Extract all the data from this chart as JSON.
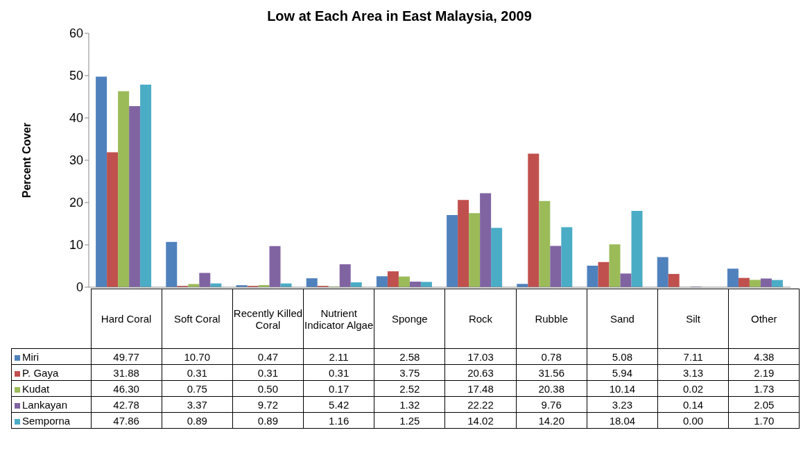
{
  "chart_data": {
    "type": "bar",
    "title": "Low at Each Area in East Malaysia, 2009",
    "ylabel": "Percent Cover",
    "categories": [
      "Hard Coral",
      "Soft Coral",
      "Recently Killed Coral",
      "Nutrient Indicator Algae",
      "Sponge",
      "Rock",
      "Rubble",
      "Sand",
      "Silt",
      "Other"
    ],
    "series": [
      {
        "name": "Miri",
        "color": "#4f81bd",
        "values": [
          49.77,
          10.7,
          0.47,
          2.11,
          2.58,
          17.03,
          0.78,
          5.08,
          7.11,
          4.38
        ],
        "value_labels": [
          "49.77",
          "10.70",
          "0.47",
          "2.11",
          "2.58",
          "17.03",
          "0.78",
          "5.08",
          "7.11",
          "4.38"
        ]
      },
      {
        "name": "P. Gaya",
        "color": "#c0504d",
        "values": [
          31.88,
          0.31,
          0.31,
          0.31,
          3.75,
          20.63,
          31.56,
          5.94,
          3.13,
          2.19
        ],
        "value_labels": [
          "31.88",
          "0.31",
          "0.31",
          "0.31",
          "3.75",
          "20.63",
          "31.56",
          "5.94",
          "3.13",
          "2.19"
        ]
      },
      {
        "name": "Kudat",
        "color": "#9bbb59",
        "values": [
          46.3,
          0.75,
          0.5,
          0.17,
          2.52,
          17.48,
          20.38,
          10.14,
          0.02,
          1.73
        ],
        "value_labels": [
          "46.30",
          "0.75",
          "0.50",
          "0.17",
          "2.52",
          "17.48",
          "20.38",
          "10.14",
          "0.02",
          "1.73"
        ]
      },
      {
        "name": "Lankayan",
        "color": "#8064a2",
        "values": [
          42.78,
          3.37,
          9.72,
          5.42,
          1.32,
          22.22,
          9.76,
          3.23,
          0.14,
          2.05
        ],
        "value_labels": [
          "42.78",
          "3.37",
          "9.72",
          "5.42",
          "1.32",
          "22.22",
          "9.76",
          "3.23",
          "0.14",
          "2.05"
        ]
      },
      {
        "name": "Semporna",
        "color": "#4bacc6",
        "values": [
          47.86,
          0.89,
          0.89,
          1.16,
          1.25,
          14.02,
          14.2,
          18.04,
          0,
          1.7
        ],
        "value_labels": [
          "47.86",
          "0.89",
          "0.89",
          "1.16",
          "1.25",
          "14.02",
          "14.20",
          "18.04",
          "0.00",
          "1.70"
        ]
      }
    ],
    "ylim": [
      0,
      60
    ],
    "yticks": [
      0,
      10,
      20,
      30,
      40,
      50,
      60
    ],
    "legend": "bottom"
  }
}
